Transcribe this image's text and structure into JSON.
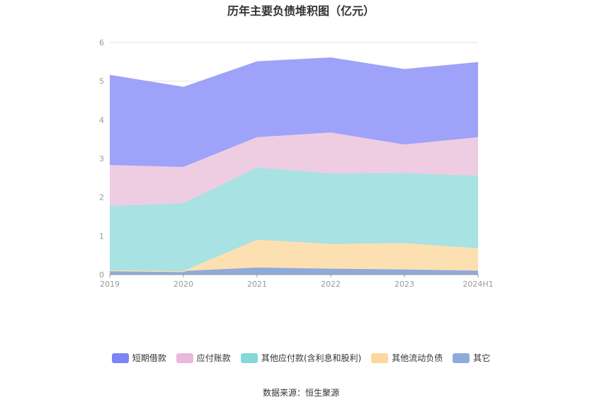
{
  "chart_data": {
    "type": "area",
    "stacked": true,
    "title": "历年主要负债堆积图（亿元）",
    "categories": [
      "2019",
      "2020",
      "2021",
      "2022",
      "2023",
      "2024H1"
    ],
    "ylim": [
      0,
      6
    ],
    "yticks": [
      "0",
      "1",
      "2",
      "3",
      "4",
      "5",
      "6"
    ],
    "grid": true,
    "legend_position": "bottom",
    "series": [
      {
        "name": "其它",
        "color": "#8eaadb",
        "values": [
          0.1,
          0.08,
          0.17,
          0.14,
          0.12,
          0.09
        ]
      },
      {
        "name": "其他流动负债",
        "color": "#fde0b1",
        "values": [
          0.0,
          0.0,
          0.72,
          0.64,
          0.68,
          0.58
        ]
      },
      {
        "name": "其他应付款(含利息和股利)",
        "color": "#a8e2e3",
        "values": [
          1.66,
          1.75,
          1.86,
          1.82,
          1.81,
          1.87
        ]
      },
      {
        "name": "应付账款",
        "color": "#eecde3",
        "values": [
          1.06,
          0.94,
          0.79,
          1.06,
          0.74,
          1.0
        ]
      },
      {
        "name": "短期借款",
        "color": "#9ea2f8",
        "values": [
          2.33,
          2.07,
          1.96,
          1.94,
          1.95,
          1.94
        ]
      }
    ]
  },
  "legend": [
    {
      "label": "短期借款",
      "color": "#7e84f3"
    },
    {
      "label": "应付账款",
      "color": "#eab8dc"
    },
    {
      "label": "其他应付款(含利息和股利)",
      "color": "#85d8d9"
    },
    {
      "label": "其他流动负债",
      "color": "#fdd79b"
    },
    {
      "label": "其它",
      "color": "#8eaadb"
    }
  ],
  "source": "数据来源：恒生聚源"
}
